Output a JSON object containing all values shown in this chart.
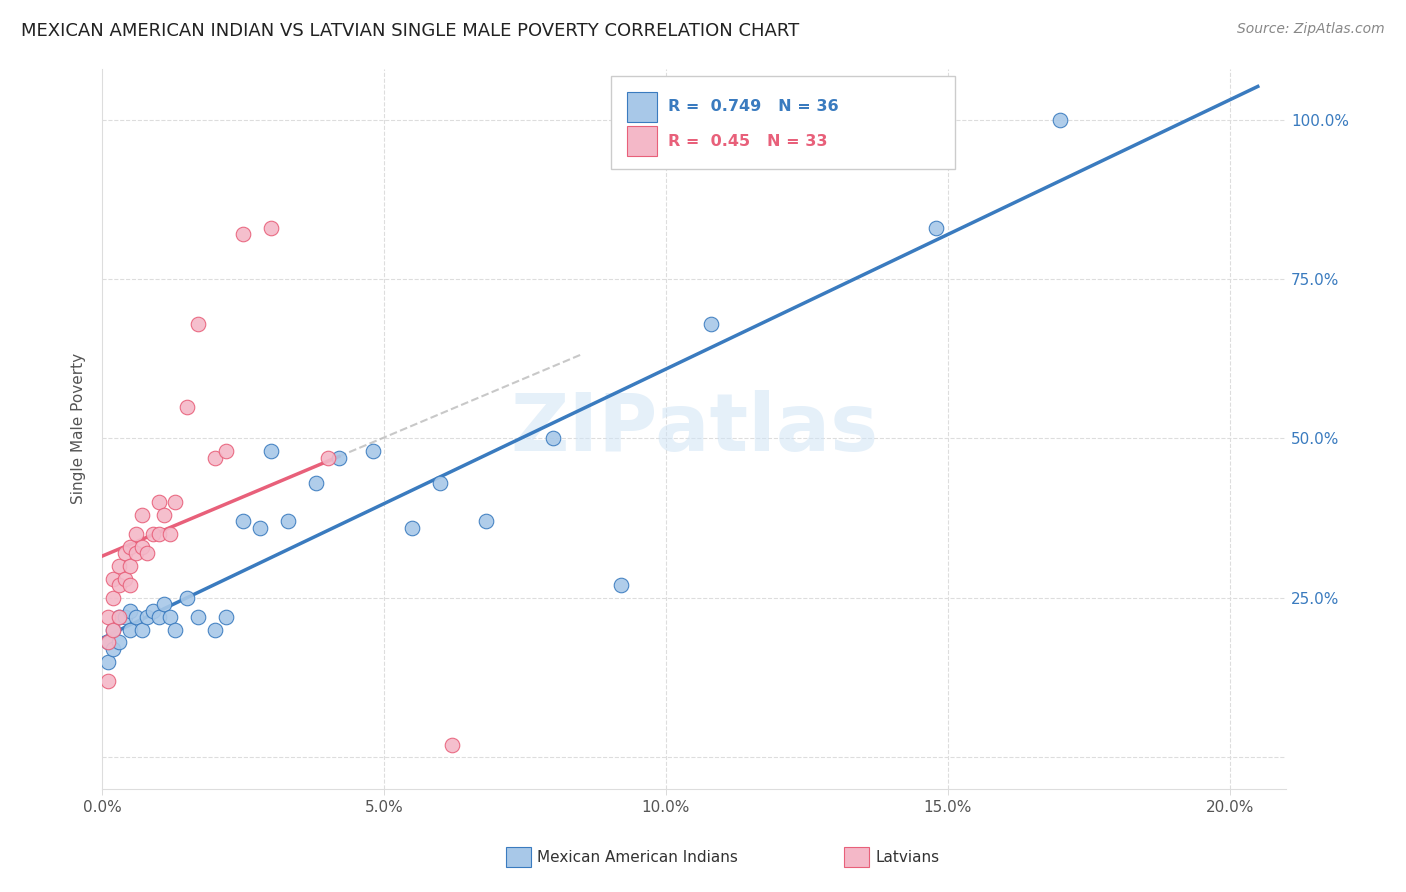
{
  "title": "MEXICAN AMERICAN INDIAN VS LATVIAN SINGLE MALE POVERTY CORRELATION CHART",
  "source": "Source: ZipAtlas.com",
  "xlabel_ticks": [
    "0.0%",
    "",
    "5.0%",
    "",
    "10.0%",
    "",
    "15.0%",
    "",
    "20.0%"
  ],
  "xlabel_tick_vals": [
    0.0,
    0.025,
    0.05,
    0.075,
    0.1,
    0.125,
    0.15,
    0.175,
    0.2
  ],
  "ylabel": "Single Male Poverty",
  "ylabel_ticks": [
    "",
    "25.0%",
    "50.0%",
    "75.0%",
    "100.0%"
  ],
  "ylabel_tick_vals": [
    0.0,
    0.25,
    0.5,
    0.75,
    1.0
  ],
  "xlim": [
    0.0,
    0.21
  ],
  "ylim": [
    -0.05,
    1.08
  ],
  "blue_R": 0.749,
  "blue_N": 36,
  "pink_R": 0.45,
  "pink_N": 33,
  "blue_color": "#a8c8e8",
  "pink_color": "#f4b8c8",
  "blue_line_color": "#3a7bbf",
  "pink_line_color": "#e8607a",
  "watermark": "ZIPatlas",
  "blue_x": [
    0.001,
    0.001,
    0.002,
    0.002,
    0.003,
    0.003,
    0.004,
    0.005,
    0.005,
    0.006,
    0.007,
    0.008,
    0.009,
    0.01,
    0.011,
    0.012,
    0.013,
    0.015,
    0.017,
    0.02,
    0.022,
    0.025,
    0.028,
    0.03,
    0.033,
    0.038,
    0.042,
    0.048,
    0.055,
    0.06,
    0.068,
    0.08,
    0.092,
    0.108,
    0.148,
    0.17
  ],
  "blue_y": [
    0.15,
    0.18,
    0.17,
    0.2,
    0.18,
    0.22,
    0.22,
    0.2,
    0.23,
    0.22,
    0.2,
    0.22,
    0.23,
    0.22,
    0.24,
    0.22,
    0.2,
    0.25,
    0.22,
    0.2,
    0.22,
    0.37,
    0.36,
    0.48,
    0.37,
    0.43,
    0.47,
    0.48,
    0.36,
    0.43,
    0.37,
    0.5,
    0.27,
    0.68,
    0.83,
    1.0
  ],
  "pink_x": [
    0.001,
    0.001,
    0.001,
    0.002,
    0.002,
    0.002,
    0.003,
    0.003,
    0.003,
    0.004,
    0.004,
    0.005,
    0.005,
    0.005,
    0.006,
    0.006,
    0.007,
    0.007,
    0.008,
    0.009,
    0.01,
    0.01,
    0.011,
    0.012,
    0.013,
    0.015,
    0.017,
    0.02,
    0.022,
    0.025,
    0.03,
    0.04,
    0.062
  ],
  "pink_y": [
    0.12,
    0.18,
    0.22,
    0.2,
    0.25,
    0.28,
    0.22,
    0.27,
    0.3,
    0.28,
    0.32,
    0.27,
    0.3,
    0.33,
    0.32,
    0.35,
    0.33,
    0.38,
    0.32,
    0.35,
    0.35,
    0.4,
    0.38,
    0.35,
    0.4,
    0.55,
    0.68,
    0.47,
    0.48,
    0.82,
    0.83,
    0.47,
    0.02
  ]
}
